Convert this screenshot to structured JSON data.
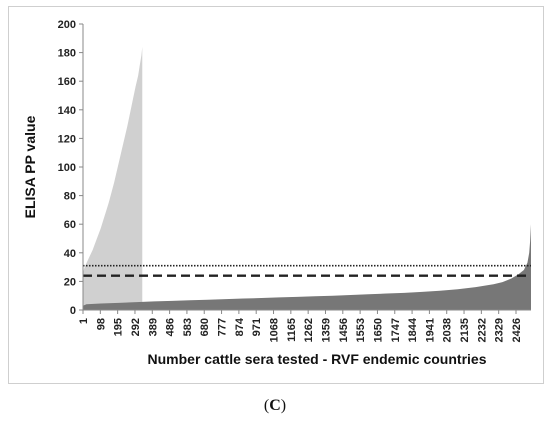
{
  "caption": {
    "open": "(",
    "letter": "C",
    "close": ")"
  },
  "chart_data": {
    "type": "area",
    "title": "",
    "xlabel": "Number cattle sera tested - RVF endemic countries",
    "ylabel": "ELISA PP value",
    "ylim": [
      0,
      200
    ],
    "yticks": [
      0,
      20,
      40,
      60,
      80,
      100,
      120,
      140,
      160,
      180,
      200
    ],
    "xlim": [
      1,
      2510
    ],
    "xticks": [
      1,
      98,
      195,
      292,
      389,
      486,
      583,
      680,
      777,
      874,
      971,
      1068,
      1165,
      1262,
      1359,
      1456,
      1553,
      1650,
      1747,
      1844,
      1941,
      2038,
      2135,
      2232,
      2329,
      2426
    ],
    "grid": false,
    "legend": "none",
    "series": [
      {
        "color": "#d0d0d0",
        "x": [
          1,
          10,
          25,
          40,
          55,
          70,
          85,
          100,
          115,
          130,
          145,
          160,
          175,
          190,
          205,
          220,
          235,
          250,
          265,
          280,
          295,
          310,
          320,
          328,
          333
        ],
        "y": [
          26,
          30,
          34,
          38,
          42,
          47,
          52,
          57,
          63,
          69,
          75,
          82,
          89,
          97,
          105,
          113,
          121,
          129,
          138,
          147,
          156,
          164,
          172,
          178,
          184
        ]
      },
      {
        "color": "#777777",
        "x": [
          1,
          20,
          100,
          200,
          300,
          400,
          500,
          600,
          700,
          800,
          900,
          1000,
          1100,
          1200,
          1300,
          1400,
          1500,
          1600,
          1700,
          1800,
          1900,
          2000,
          2100,
          2200,
          2300,
          2350,
          2400,
          2440,
          2470,
          2490,
          2500,
          2505,
          2510
        ],
        "y": [
          3,
          4,
          4.5,
          5,
          5.5,
          6,
          6.4,
          6.8,
          7.2,
          7.6,
          8,
          8.4,
          8.8,
          9.2,
          9.6,
          10,
          10.5,
          11,
          11.5,
          12,
          12.7,
          13.5,
          14.5,
          16,
          18,
          19.5,
          22,
          25,
          28,
          33,
          40,
          48,
          60
        ]
      }
    ],
    "reference_lines": [
      {
        "y": 31,
        "style": "dotted",
        "color": "#222222"
      },
      {
        "y": 24,
        "style": "dashed",
        "color": "#222222"
      }
    ]
  }
}
